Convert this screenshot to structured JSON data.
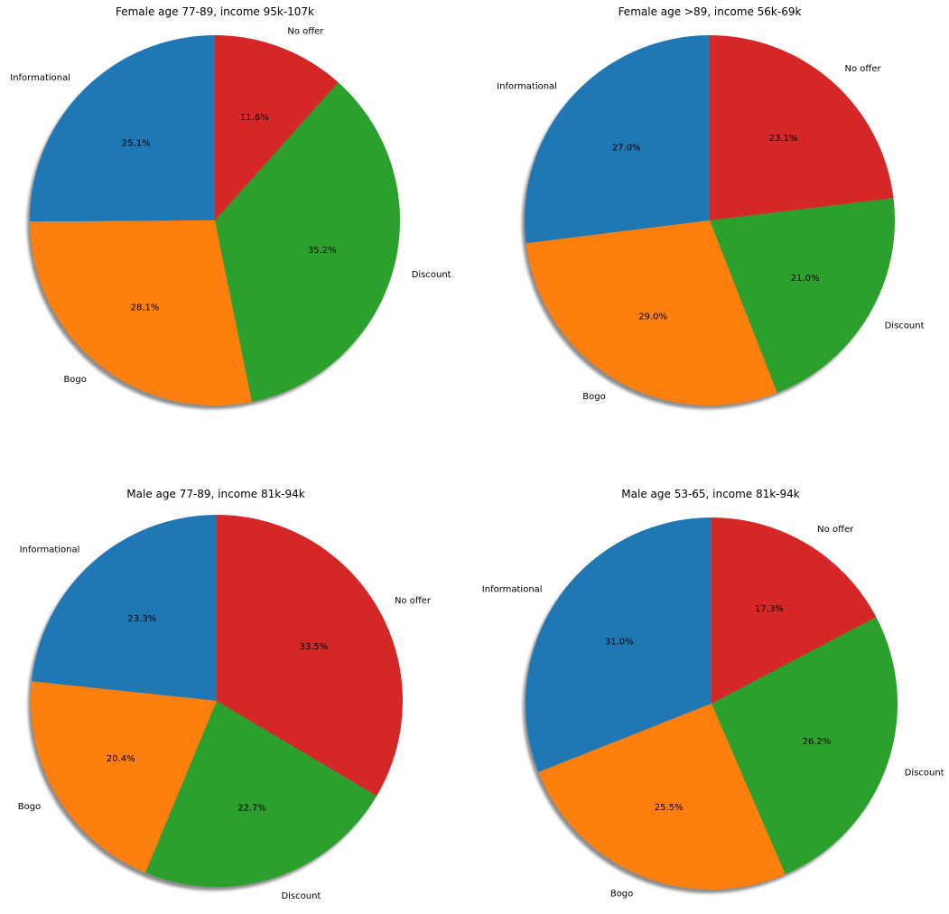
{
  "chart_data": [
    {
      "type": "pie",
      "title": "Female age 77-89, income 95k-107k",
      "labels": [
        "Informational",
        "Bogo",
        "Discount",
        "No offer"
      ],
      "values": [
        25.1,
        28.1,
        35.2,
        11.6
      ],
      "percent_labels": [
        "25.1%",
        "28.1%",
        "35.2%",
        "11.6%"
      ],
      "colors": [
        "#1f77b4",
        "#ff7f0e",
        "#2ca02c",
        "#d62728"
      ],
      "start_angle_deg": 90,
      "direction": "counterclockwise",
      "shadow": true
    },
    {
      "type": "pie",
      "title": "Female age >89, income 56k-69k",
      "labels": [
        "Informational",
        "Bogo",
        "Discount",
        "No offer"
      ],
      "values": [
        27.0,
        29.0,
        21.0,
        23.1
      ],
      "percent_labels": [
        "27.0%",
        "29.0%",
        "21.0%",
        "23.1%"
      ],
      "colors": [
        "#1f77b4",
        "#ff7f0e",
        "#2ca02c",
        "#d62728"
      ],
      "start_angle_deg": 90,
      "direction": "counterclockwise",
      "shadow": true
    },
    {
      "type": "pie",
      "title": "Male age 77-89, income 81k-94k",
      "labels": [
        "Informational",
        "Bogo",
        "Discount",
        "No offer"
      ],
      "values": [
        23.3,
        20.4,
        22.7,
        33.5
      ],
      "percent_labels": [
        "23.3%",
        "20.4%",
        "22.7%",
        "33.5%"
      ],
      "colors": [
        "#1f77b4",
        "#ff7f0e",
        "#2ca02c",
        "#d62728"
      ],
      "start_angle_deg": 90,
      "direction": "counterclockwise",
      "shadow": true
    },
    {
      "type": "pie",
      "title": "Male age 53-65, income 81k-94k",
      "labels": [
        "Informational",
        "Bogo",
        "Discount",
        "No offer"
      ],
      "values": [
        31.0,
        25.5,
        26.2,
        17.3
      ],
      "percent_labels": [
        "31.0%",
        "25.5%",
        "26.2%",
        "17.3%"
      ],
      "colors": [
        "#1f77b4",
        "#ff7f0e",
        "#2ca02c",
        "#d62728"
      ],
      "start_angle_deg": 90,
      "direction": "counterclockwise",
      "shadow": true
    }
  ]
}
